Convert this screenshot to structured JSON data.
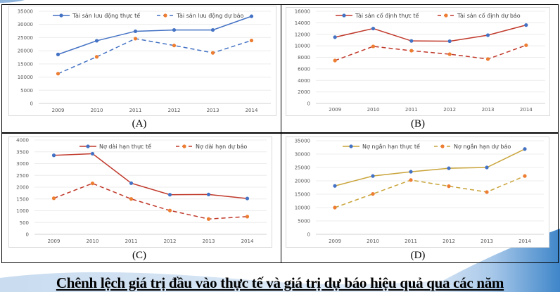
{
  "title": "Chênh lệch giá trị đầu vào thực tế và giá trị dự báo hiệu quả qua các năm",
  "chart_data": [
    {
      "id": "A",
      "type": "line",
      "caption": "(A)",
      "categories": [
        "2009",
        "2010",
        "2011",
        "2012",
        "2013",
        "2014"
      ],
      "ylim": [
        0,
        35000
      ],
      "yticks": [
        "0",
        "5000",
        "10000",
        "15000",
        "20000",
        "25000",
        "30000",
        "35000"
      ],
      "grid": true,
      "legend": "top",
      "series": [
        {
          "name": "Tài sản lưu động thực tế",
          "values": [
            18600,
            23800,
            27400,
            27900,
            27900,
            33100
          ],
          "line_color": "#4472c4",
          "marker_color": "#4472c4",
          "dashed": false
        },
        {
          "name": "Tài sản lưu động dự báo",
          "values": [
            11300,
            17700,
            24600,
            22000,
            19200,
            23900
          ],
          "line_color": "#4472c4",
          "marker_color": "#ed7d31",
          "dashed": true
        }
      ]
    },
    {
      "id": "B",
      "type": "line",
      "caption": "(B)",
      "categories": [
        "2009",
        "2010",
        "2011",
        "2012",
        "2013",
        "2014"
      ],
      "ylim": [
        0,
        16000
      ],
      "yticks": [
        "0",
        "2000",
        "4000",
        "6000",
        "8000",
        "10000",
        "12000",
        "14000",
        "16000"
      ],
      "grid": true,
      "legend": "top",
      "series": [
        {
          "name": "Tài sản cố định thực tế",
          "values": [
            11500,
            13000,
            10850,
            10800,
            11850,
            13600
          ],
          "line_color": "#c0392b",
          "marker_color": "#4472c4",
          "dashed": false
        },
        {
          "name": "Tài sản cố định dự báo",
          "values": [
            7450,
            9900,
            9150,
            8550,
            7700,
            10100
          ],
          "line_color": "#c0392b",
          "marker_color": "#ed7d31",
          "dashed": true
        }
      ]
    },
    {
      "id": "C",
      "type": "line",
      "caption": "(C)",
      "categories": [
        "2009",
        "2010",
        "2011",
        "2012",
        "2013",
        "2014"
      ],
      "ylim": [
        0,
        4000
      ],
      "yticks": [
        "0",
        "500",
        "1000",
        "1500",
        "2000",
        "2500",
        "3000",
        "3500",
        "4000"
      ],
      "grid": true,
      "legend": "top",
      "series": [
        {
          "name": "Nợ dài hạn thực tế",
          "values": [
            3350,
            3420,
            2170,
            1680,
            1690,
            1520
          ],
          "line_color": "#c0392b",
          "marker_color": "#4472c4",
          "dashed": false
        },
        {
          "name": "Nợ dài hạn dự báo",
          "values": [
            1530,
            2160,
            1500,
            1010,
            650,
            750
          ],
          "line_color": "#c0392b",
          "marker_color": "#ed7d31",
          "dashed": true
        }
      ]
    },
    {
      "id": "D",
      "type": "line",
      "caption": "(D)",
      "categories": [
        "2009",
        "2010",
        "2011",
        "2012",
        "2013",
        "2014"
      ],
      "ylim": [
        0,
        35000
      ],
      "yticks": [
        "0",
        "5000",
        "10000",
        "15000",
        "20000",
        "25000",
        "30000",
        "35000"
      ],
      "grid": true,
      "legend": "top",
      "series": [
        {
          "name": "Nợ ngắn hạn thực tế",
          "values": [
            18100,
            21800,
            23400,
            24700,
            25000,
            31900
          ],
          "line_color": "#c9a43a",
          "marker_color": "#4472c4",
          "dashed": false
        },
        {
          "name": "Nợ ngắn hạn dự báo",
          "values": [
            10000,
            15100,
            20300,
            18000,
            15800,
            21800
          ],
          "line_color": "#c9a43a",
          "marker_color": "#ed7d31",
          "dashed": true
        }
      ]
    }
  ]
}
